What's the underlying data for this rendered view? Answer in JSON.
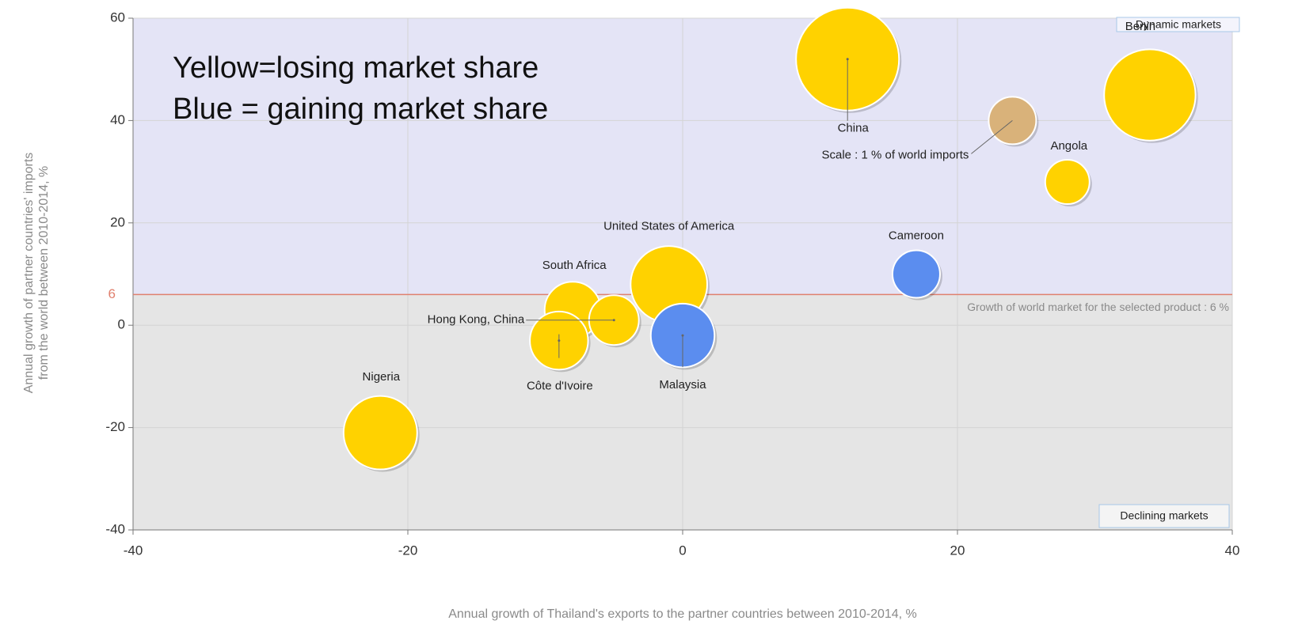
{
  "chart_data": {
    "type": "bubble",
    "xlabel": "Annual growth of Thailand's exports to the partner countries between 2010-2014, %",
    "ylabel": [
      "Annual growth of partner countries' imports",
      "from the world between 2010-2014, %"
    ],
    "xlim": [
      -40,
      40
    ],
    "xticks": [
      -40,
      -20,
      0,
      20,
      40
    ],
    "ylim": [
      -40,
      60
    ],
    "yticks": [
      -40,
      -20,
      0,
      20,
      40,
      60
    ],
    "grid": true,
    "reference_line": {
      "value": 6,
      "label": "Growth of world market for the selected product : 6 %",
      "color": "#e0806e"
    },
    "quadrant_labels": [
      "Dynamic markets",
      "Declining markets"
    ],
    "annotation": [
      "Yellow=losing market share",
      "Blue = gaining market share"
    ],
    "points": [
      {
        "label": "China",
        "x": 12,
        "y": 52,
        "size": 4.7,
        "color": "#ffd200"
      },
      {
        "label": "Benin",
        "x": 34,
        "y": 45,
        "size": 3.7,
        "color": "#ffd200"
      },
      {
        "label": "Angola",
        "x": 28,
        "y": 28,
        "size": 0.87,
        "color": "#ffd200"
      },
      {
        "label": "Cameroon",
        "x": 17,
        "y": 10,
        "size": 1,
        "color": "#5b8def"
      },
      {
        "label": "United States of America",
        "x": -1,
        "y": 8,
        "size": 2.6,
        "color": "#ffd200"
      },
      {
        "label": "Malaysia",
        "x": 0,
        "y": -2,
        "size": 1.8,
        "color": "#5b8def"
      },
      {
        "label": "South Africa",
        "x": -8,
        "y": 3,
        "size": 1.4,
        "color": "#ffd200"
      },
      {
        "label": "Hong Kong, China",
        "x": -5,
        "y": 1,
        "size": 1.1,
        "color": "#ffd200"
      },
      {
        "label": "Côte d'Ivoire",
        "x": -9,
        "y": -3,
        "size": 1.5,
        "color": "#ffd200"
      },
      {
        "label": "Nigeria",
        "x": -22,
        "y": -21,
        "size": 2.4,
        "color": "#ffd200"
      }
    ],
    "scale_bubble": {
      "label": "Scale : 1 % of world imports",
      "x": 24,
      "y": 40,
      "size": 1,
      "color": "#d9b27a"
    }
  }
}
